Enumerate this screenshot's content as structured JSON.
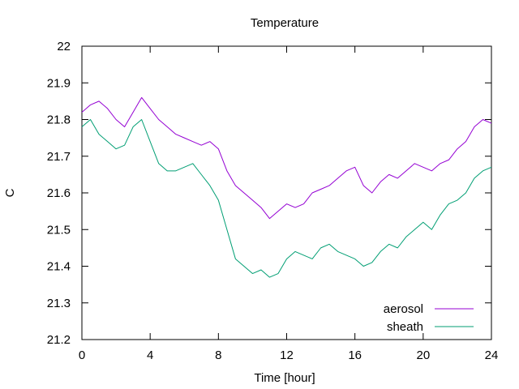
{
  "chart_data": {
    "type": "line",
    "title": "Temperature",
    "xlabel": "Time [hour]",
    "ylabel": "C",
    "xlim": [
      0,
      24
    ],
    "ylim": [
      21.2,
      22.0
    ],
    "xticks": [
      0,
      4,
      8,
      12,
      16,
      20,
      24
    ],
    "xtick_labels": [
      "0",
      "4",
      "8",
      "12",
      "16",
      "20",
      "24"
    ],
    "yticks": [
      21.2,
      21.3,
      21.4,
      21.5,
      21.6,
      21.7,
      21.8,
      21.9,
      22.0
    ],
    "ytick_labels": [
      "21.2",
      "21.3",
      "21.4",
      "21.5",
      "21.6",
      "21.7",
      "21.8",
      "21.9",
      "22"
    ],
    "grid": false,
    "legend_position": "bottom-right",
    "series": [
      {
        "name": "aerosol",
        "color": "#9400d3",
        "x": [
          0,
          0.5,
          1,
          1.5,
          2,
          2.5,
          3,
          3.5,
          4,
          4.5,
          5,
          5.5,
          6,
          6.5,
          7,
          7.5,
          8,
          8.5,
          9,
          9.5,
          10,
          10.5,
          11,
          11.5,
          12,
          12.5,
          13,
          13.5,
          14,
          14.5,
          15,
          15.5,
          16,
          16.5,
          17,
          17.5,
          18,
          18.5,
          19,
          19.5,
          20,
          20.5,
          21,
          21.5,
          22,
          22.5,
          23,
          23.5,
          24
        ],
        "y": [
          21.82,
          21.84,
          21.85,
          21.83,
          21.8,
          21.78,
          21.82,
          21.86,
          21.83,
          21.8,
          21.78,
          21.76,
          21.75,
          21.74,
          21.73,
          21.74,
          21.72,
          21.66,
          21.62,
          21.6,
          21.58,
          21.56,
          21.53,
          21.55,
          21.57,
          21.56,
          21.57,
          21.6,
          21.61,
          21.62,
          21.64,
          21.66,
          21.67,
          21.62,
          21.6,
          21.63,
          21.65,
          21.64,
          21.66,
          21.68,
          21.67,
          21.66,
          21.68,
          21.69,
          21.72,
          21.74,
          21.78,
          21.8,
          21.79
        ]
      },
      {
        "name": "sheath",
        "color": "#009e73",
        "x": [
          0,
          0.5,
          1,
          1.5,
          2,
          2.5,
          3,
          3.5,
          4,
          4.5,
          5,
          5.5,
          6,
          6.5,
          7,
          7.5,
          8,
          8.5,
          9,
          9.5,
          10,
          10.5,
          11,
          11.5,
          12,
          12.5,
          13,
          13.5,
          14,
          14.5,
          15,
          15.5,
          16,
          16.5,
          17,
          17.5,
          18,
          18.5,
          19,
          19.5,
          20,
          20.5,
          21,
          21.5,
          22,
          22.5,
          23,
          23.5,
          24
        ],
        "y": [
          21.78,
          21.8,
          21.76,
          21.74,
          21.72,
          21.73,
          21.78,
          21.8,
          21.74,
          21.68,
          21.66,
          21.66,
          21.67,
          21.68,
          21.65,
          21.62,
          21.58,
          21.5,
          21.42,
          21.4,
          21.38,
          21.39,
          21.37,
          21.38,
          21.42,
          21.44,
          21.43,
          21.42,
          21.45,
          21.46,
          21.44,
          21.43,
          21.42,
          21.4,
          21.41,
          21.44,
          21.46,
          21.45,
          21.48,
          21.5,
          21.52,
          21.5,
          21.54,
          21.57,
          21.58,
          21.6,
          21.64,
          21.66,
          21.67
        ]
      }
    ]
  }
}
